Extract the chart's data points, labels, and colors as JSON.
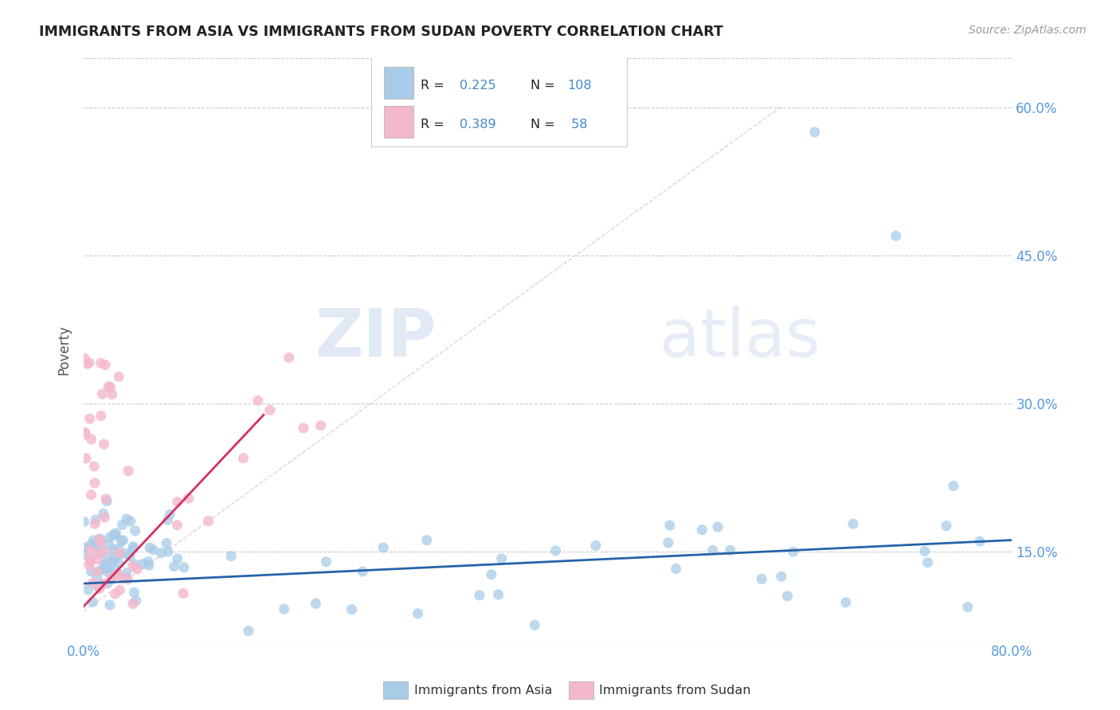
{
  "title": "IMMIGRANTS FROM ASIA VS IMMIGRANTS FROM SUDAN POVERTY CORRELATION CHART",
  "source": "Source: ZipAtlas.com",
  "ylabel": "Poverty",
  "xlim": [
    0.0,
    0.8
  ],
  "ylim": [
    0.06,
    0.65
  ],
  "ytick_labels": [
    "15.0%",
    "30.0%",
    "45.0%",
    "60.0%"
  ],
  "ytick_values": [
    0.15,
    0.3,
    0.45,
    0.6
  ],
  "color_asia": "#a8cce8",
  "color_sudan": "#f4b8cc",
  "trendline_asia_color": "#2563a8",
  "trendline_sudan_color": "#d63060",
  "watermark_zip": "ZIP",
  "watermark_atlas": "atlas",
  "background_color": "#ffffff",
  "grid_color": "#cccccc",
  "title_color": "#222222",
  "source_color": "#999999",
  "tick_color": "#5599dd",
  "label_color": "#555555",
  "legend_text_color": "#222222",
  "legend_val_color": "#4488cc"
}
